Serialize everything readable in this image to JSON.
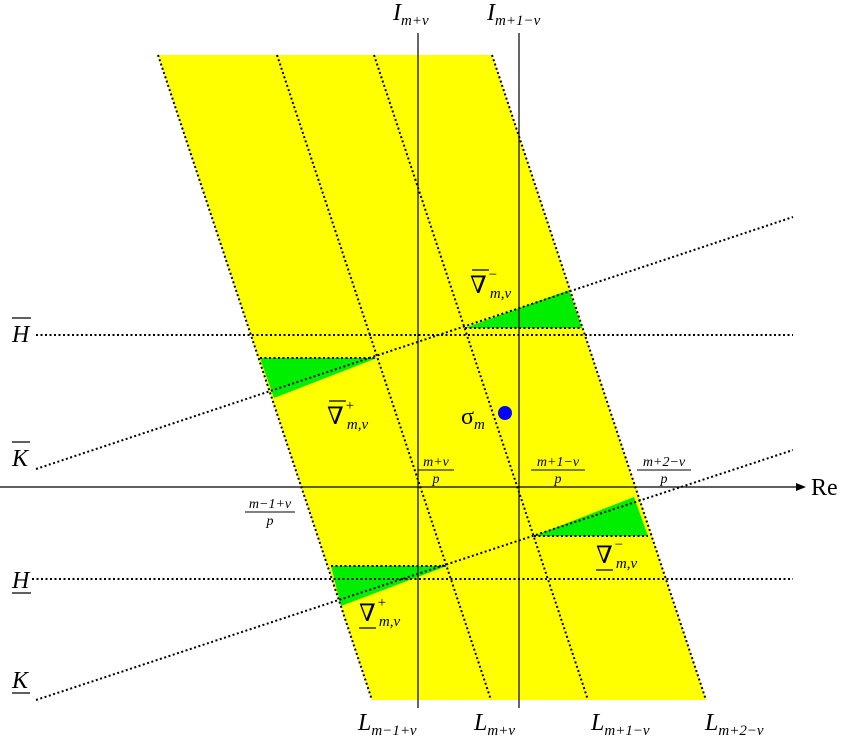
{
  "axis": {
    "re_label": "Re"
  },
  "vertical_lines": {
    "left": {
      "base": "I",
      "sub": "m+ν"
    },
    "right": {
      "base": "I",
      "sub": "m+1−ν"
    }
  },
  "horizontal_lines": {
    "H_bar": "H",
    "H": "H"
  },
  "slanted_lines": {
    "K_bar": "K",
    "K": "K"
  },
  "strip_labels": [
    {
      "base": "L",
      "sub": "m−1+ν"
    },
    {
      "base": "L",
      "sub": "m+ν"
    },
    {
      "base": "L",
      "sub": "m+1−ν"
    },
    {
      "base": "L",
      "sub": "m+2−ν"
    }
  ],
  "fractions": [
    {
      "num": "m−1+ν",
      "den": "p"
    },
    {
      "num": "m+ν",
      "den": "p"
    },
    {
      "num": "m+1−ν",
      "den": "p"
    },
    {
      "num": "m+2−ν",
      "den": "p"
    }
  ],
  "triangles": [
    {
      "symbol": "∇",
      "sup": "−",
      "sub": "m,ν",
      "bar": "over"
    },
    {
      "symbol": "∇",
      "sup": "+",
      "sub": "m,ν",
      "bar": "over"
    },
    {
      "symbol": "∇",
      "sup": "−",
      "sub": "m,ν",
      "bar": "under"
    },
    {
      "symbol": "∇",
      "sup": "+",
      "sub": "m,ν",
      "bar": "under"
    }
  ],
  "point": {
    "base": "σ",
    "sub": "m"
  },
  "colors": {
    "strip": "#ffff00",
    "triangle": "#00ee00",
    "point": "#0000ff",
    "line": "#000000"
  }
}
